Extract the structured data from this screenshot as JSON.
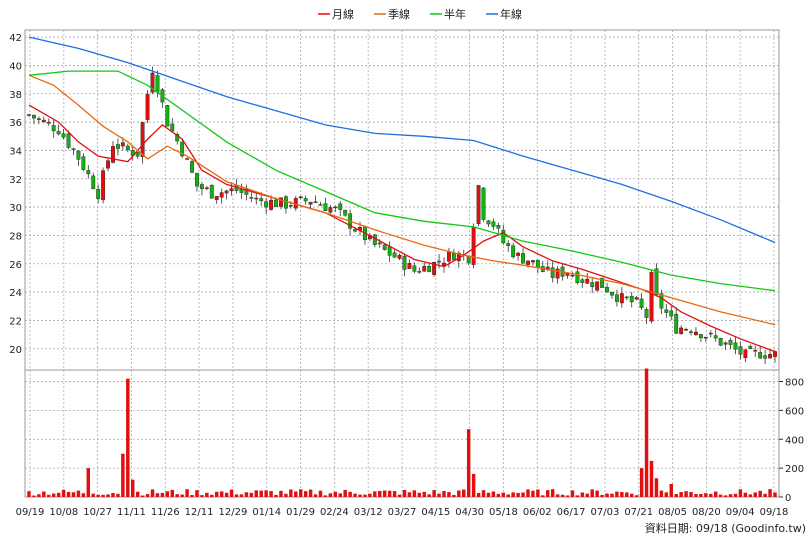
{
  "legend": [
    {
      "label": "月線",
      "color": "#e01010"
    },
    {
      "label": "季線",
      "color": "#e86a10"
    },
    {
      "label": "半年",
      "color": "#12c812"
    },
    {
      "label": "年線",
      "color": "#1f6fe0"
    }
  ],
  "footer": "資料日期: 09/18  (Goodinfo.tw)",
  "chart_data": {
    "type": "candlestick",
    "price_axis": {
      "ticks": [
        "20",
        "22",
        "24",
        "26",
        "28",
        "30",
        "32",
        "34",
        "36",
        "38",
        "40",
        "42"
      ],
      "ylim": [
        18.5,
        42.5
      ]
    },
    "volume_axis": {
      "ticks": [
        "0",
        "200",
        "400",
        "600",
        "800"
      ],
      "ylim": [
        0,
        880
      ]
    },
    "x_labels": [
      "09/19",
      "10/08",
      "10/27",
      "11/11",
      "11/26",
      "12/11",
      "12/29",
      "01/14",
      "01/29",
      "02/24",
      "03/12",
      "03/27",
      "04/15",
      "04/30",
      "05/18",
      "06/02",
      "06/17",
      "07/03",
      "07/21",
      "08/05",
      "08/20",
      "09/04",
      "09/18"
    ],
    "colors": {
      "up": "#e01010",
      "down": "#12b012",
      "volume": "#e01010",
      "grid": "#aaaaaa"
    },
    "price_path": [
      [
        0,
        36.5
      ],
      [
        6,
        35.5
      ],
      [
        10,
        33.5
      ],
      [
        14,
        31
      ],
      [
        17,
        34.5
      ],
      [
        20,
        34
      ],
      [
        22,
        33.8
      ],
      [
        24,
        38
      ],
      [
        25,
        39.8
      ],
      [
        28,
        36
      ],
      [
        31,
        34
      ],
      [
        34,
        31.5
      ],
      [
        37,
        31
      ],
      [
        42,
        31.2
      ],
      [
        46,
        30.5
      ],
      [
        52,
        30.2
      ],
      [
        57,
        30.5
      ],
      [
        62,
        29.8
      ],
      [
        66,
        28.5
      ],
      [
        70,
        27.3
      ],
      [
        74,
        26.5
      ],
      [
        78,
        25.5
      ],
      [
        82,
        26
      ],
      [
        86,
        26.7
      ],
      [
        89,
        26.5
      ],
      [
        91,
        31.5
      ],
      [
        92,
        29.5
      ],
      [
        94,
        28.8
      ],
      [
        96,
        27.5
      ],
      [
        99,
        26.5
      ],
      [
        101,
        26.3
      ],
      [
        104,
        25.5
      ],
      [
        106,
        25.2
      ],
      [
        109,
        25.5
      ],
      [
        112,
        24.9
      ],
      [
        116,
        24.5
      ],
      [
        120,
        23.5
      ],
      [
        123,
        23.2
      ],
      [
        125,
        22.3
      ],
      [
        126,
        25
      ],
      [
        127,
        23.5
      ],
      [
        129,
        22.5
      ],
      [
        131,
        21.5
      ],
      [
        134,
        21.5
      ],
      [
        138,
        20.8
      ],
      [
        141,
        20.3
      ],
      [
        145,
        19.5
      ],
      [
        148,
        19.7
      ],
      [
        151,
        19.6
      ]
    ],
    "series": [
      {
        "name": "月線",
        "points": [
          [
            0,
            37.2
          ],
          [
            6,
            36
          ],
          [
            10,
            34.6
          ],
          [
            14,
            33.6
          ],
          [
            20,
            33.2
          ],
          [
            24,
            34.8
          ],
          [
            27,
            35.8
          ],
          [
            31,
            34.8
          ],
          [
            35,
            32.6
          ],
          [
            40,
            31.6
          ],
          [
            50,
            30.6
          ],
          [
            60,
            29.6
          ],
          [
            70,
            27.8
          ],
          [
            78,
            26.3
          ],
          [
            84,
            25.8
          ],
          [
            88,
            26.6
          ],
          [
            92,
            27.6
          ],
          [
            96,
            28.2
          ],
          [
            100,
            27.2
          ],
          [
            106,
            26.2
          ],
          [
            112,
            25.6
          ],
          [
            118,
            24.9
          ],
          [
            124,
            24.2
          ],
          [
            128,
            23.6
          ],
          [
            132,
            22.6
          ],
          [
            138,
            21.6
          ],
          [
            144,
            20.7
          ],
          [
            151,
            19.8
          ]
        ]
      },
      {
        "name": "季線",
        "points": [
          [
            0,
            39.3
          ],
          [
            5,
            38.6
          ],
          [
            10,
            37.2
          ],
          [
            15,
            35.7
          ],
          [
            20,
            34.6
          ],
          [
            24,
            33.4
          ],
          [
            28,
            34.3
          ],
          [
            32,
            33.6
          ],
          [
            40,
            31.8
          ],
          [
            50,
            30.6
          ],
          [
            60,
            29.6
          ],
          [
            70,
            28.4
          ],
          [
            80,
            27.3
          ],
          [
            88,
            26.6
          ],
          [
            94,
            26.2
          ],
          [
            100,
            25.9
          ],
          [
            110,
            25.3
          ],
          [
            120,
            24.6
          ],
          [
            130,
            23.6
          ],
          [
            140,
            22.6
          ],
          [
            151,
            21.7
          ]
        ]
      },
      {
        "name": "半年",
        "points": [
          [
            0,
            39.3
          ],
          [
            8,
            39.6
          ],
          [
            18,
            39.6
          ],
          [
            24,
            38.6
          ],
          [
            30,
            37.1
          ],
          [
            40,
            34.6
          ],
          [
            50,
            32.6
          ],
          [
            60,
            31.1
          ],
          [
            70,
            29.6
          ],
          [
            80,
            29
          ],
          [
            90,
            28.6
          ],
          [
            100,
            27.6
          ],
          [
            110,
            26.9
          ],
          [
            120,
            26.1
          ],
          [
            130,
            25.2
          ],
          [
            140,
            24.6
          ],
          [
            151,
            24.1
          ]
        ]
      },
      {
        "name": "年線",
        "points": [
          [
            0,
            42
          ],
          [
            10,
            41.2
          ],
          [
            20,
            40.2
          ],
          [
            30,
            39
          ],
          [
            40,
            37.8
          ],
          [
            50,
            36.8
          ],
          [
            60,
            35.8
          ],
          [
            70,
            35.2
          ],
          [
            80,
            35
          ],
          [
            90,
            34.7
          ],
          [
            100,
            33.6
          ],
          [
            110,
            32.6
          ],
          [
            120,
            31.6
          ],
          [
            130,
            30.4
          ],
          [
            140,
            29.1
          ],
          [
            151,
            27.5
          ]
        ]
      }
    ],
    "volume_spikes": [
      {
        "x": 12,
        "v": 200
      },
      {
        "x": 19,
        "v": 300
      },
      {
        "x": 20,
        "v": 820
      },
      {
        "x": 21,
        "v": 120
      },
      {
        "x": 89,
        "v": 470
      },
      {
        "x": 90,
        "v": 160
      },
      {
        "x": 124,
        "v": 200
      },
      {
        "x": 125,
        "v": 890
      },
      {
        "x": 126,
        "v": 250
      },
      {
        "x": 127,
        "v": 130
      },
      {
        "x": 130,
        "v": 90
      }
    ]
  }
}
